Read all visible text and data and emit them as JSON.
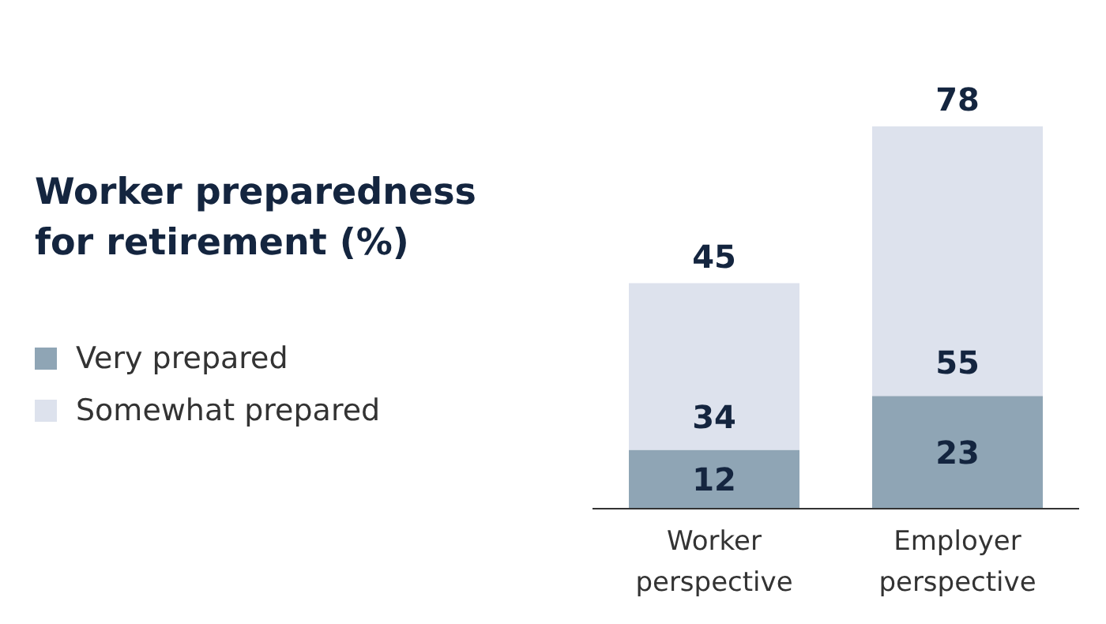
{
  "chart_data": {
    "type": "bar",
    "title": "Worker preparedness\nfor retirement (%)",
    "categories": [
      "Worker perspective",
      "Employer perspective"
    ],
    "stacked": true,
    "series": [
      {
        "name": "Very prepared",
        "color": "#8fa5b5",
        "values": [
          12,
          23
        ]
      },
      {
        "name": "Somewhat prepared",
        "color": "#dde2ed",
        "values": [
          34,
          55
        ]
      }
    ],
    "totals": [
      "45",
      "78"
    ],
    "data_labels": true,
    "legend": "left",
    "grid": false
  }
}
